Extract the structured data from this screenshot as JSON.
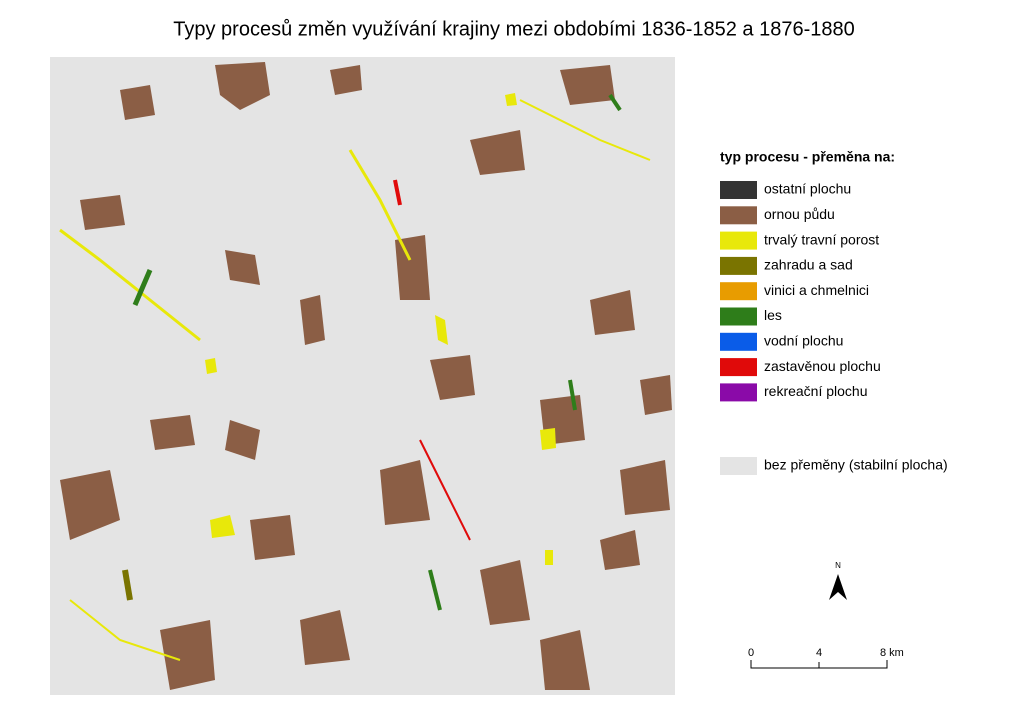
{
  "title": "Typy procesů změn využívání krajiny mezi obdobími 1836-1852 a 1876-1880",
  "legend": {
    "title": "typ procesu - přeměna na:",
    "items": [
      {
        "label": "ostatní plochu",
        "color": "#343434"
      },
      {
        "label": "ornou půdu",
        "color": "#8b5e45"
      },
      {
        "label": "trvalý travní porost",
        "color": "#e8e80a"
      },
      {
        "label": "zahradu a sad",
        "color": "#7a7400"
      },
      {
        "label": "vinici a chmelnici",
        "color": "#e89c00"
      },
      {
        "label": "les",
        "color": "#2e7d1a"
      },
      {
        "label": "vodní plochu",
        "color": "#0a5ce8"
      },
      {
        "label": "zastavěnou plochu",
        "color": "#e00a0a"
      },
      {
        "label": "rekreační plochu",
        "color": "#8a0aa8"
      }
    ],
    "stable": {
      "label": "bez přeměny (stabilní plocha)",
      "color": "#e4e4e4"
    }
  },
  "north_arrow": {
    "label": "N"
  },
  "scale_bar": {
    "labels": [
      "0",
      "4",
      "8 km"
    ]
  }
}
